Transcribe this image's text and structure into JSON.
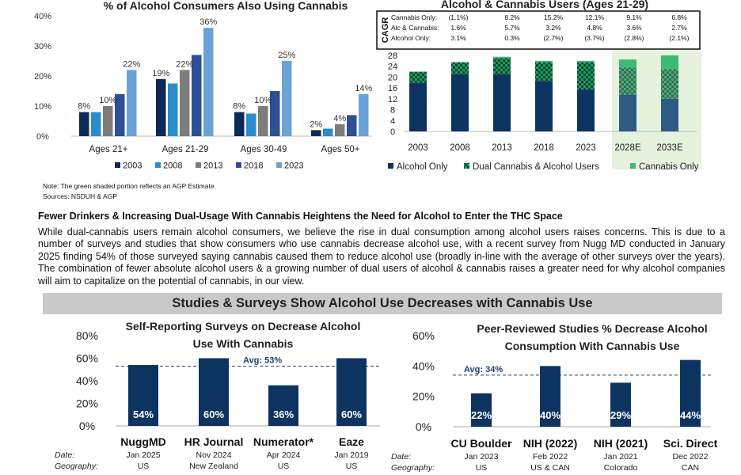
{
  "colors": {
    "c2003": "#0b2a55",
    "c2008": "#2b8ccb",
    "c2013": "#7d7d7d",
    "c2018": "#2e4f96",
    "c2023": "#6aa3d6",
    "navy": "#0d3461",
    "alcOnly": "#0d3461",
    "dual": "#1f9a5a",
    "cannOnly": "#3dbb74",
    "estShade": "#e5f2de"
  },
  "chart1": {
    "chart_data": {
      "type": "bar",
      "title": "% of Alcohol Consumers Also Using Cannabis",
      "categories": [
        "Ages 21+",
        "Ages 21-29",
        "Ages 30-49",
        "Ages 50+"
      ],
      "series": [
        {
          "name": "2003",
          "values": [
            8,
            19,
            8,
            2
          ]
        },
        {
          "name": "2008",
          "values": [
            8,
            17.5,
            7.5,
            2.5
          ]
        },
        {
          "name": "2013",
          "values": [
            10,
            22,
            10,
            4
          ]
        },
        {
          "name": "2018",
          "values": [
            14,
            27,
            15,
            7
          ]
        },
        {
          "name": "2023",
          "values": [
            22,
            36,
            25,
            14
          ]
        }
      ],
      "data_labels": [
        [
          "8%",
          "",
          "10%",
          "",
          "22%"
        ],
        [
          "19%",
          "",
          "22%",
          "",
          "36%"
        ],
        [
          "8%",
          "",
          "10%",
          "",
          "25%"
        ],
        [
          "2%",
          "",
          "4%",
          "",
          "14%"
        ]
      ],
      "yticks": [
        "0%",
        "10%",
        "20%",
        "30%",
        "40%"
      ],
      "ylim": [
        0,
        40
      ]
    }
  },
  "chart2": {
    "chart_data": {
      "type": "bar",
      "title": "Alcohol & Cannabis Users (Ages 21-29)",
      "categories": [
        "2003",
        "2008",
        "2013",
        "2018",
        "2023",
        "2028E",
        "2033E"
      ],
      "estimated_categories": [
        "2028E",
        "2033E"
      ],
      "series": [
        {
          "name": "Alcohol Only",
          "values": [
            18,
            21,
            21,
            18.5,
            15.5,
            13.5,
            12
          ]
        },
        {
          "name": "Dual Cannabis & Alcohol Users",
          "values": [
            4,
            4.5,
            6,
            7,
            10,
            10,
            11
          ]
        },
        {
          "name": "Cannabis Only",
          "values": [
            0,
            0,
            0.5,
            0.5,
            0.5,
            3,
            5
          ]
        }
      ],
      "yticks": [
        "0",
        "4",
        "8",
        "12",
        "16",
        "20",
        "24",
        "28"
      ],
      "ylim": [
        0,
        28
      ],
      "cagr": {
        "label": "CAGR",
        "rows": [
          {
            "name": "Cannabis Only:",
            "values": [
              "(1.1%)",
              "8.2%",
              "15.2%",
              "12.1%",
              "9.1%",
              "6.8%"
            ]
          },
          {
            "name": "Alc & Cannabis:",
            "values": [
              "1.6%",
              "5.7%",
              "3.2%",
              "4.8%",
              "3.6%",
              "2.7%"
            ]
          },
          {
            "name": "Alcohol Only:",
            "values": [
              "3.1%",
              "0.3%",
              "(2.7%)",
              "(3.7%)",
              "(2.8%)",
              "(2.1%)"
            ]
          }
        ]
      }
    }
  },
  "notes": {
    "note": "Note: The green shaded portion reflects an AGP Estimate.",
    "sources": "Sources: NSDUH & AGP"
  },
  "headline": "Fewer Drinkers & Increasing Dual-Usage With Cannabis Heightens the Need for Alcohol to Enter the THC Space",
  "paragraph": "While dual-cannabis users remain alcohol consumers, we believe the rise in dual consumption among alcohol users raises concerns. This is due to a number of surveys and studies that show consumers who use cannabis decrease alcohol use, with a recent survey from Nugg MD conducted in January 2025 finding 54% of those surveyed saying cannabis caused them to reduce alcohol use (broadly in-line with the average of other surveys over the years). The combination of fewer absolute alcohol users & a growing number of dual users of alcohol & cannabis raises a greater need for why alcohol companies will aim to capitalize on the potential of cannabis, in our view.",
  "banner": "Studies & Surveys Show Alcohol Use Decreases with Cannabis Use",
  "chart3": {
    "chart_data": {
      "type": "bar",
      "title_lines": [
        "Self-Reporting Surveys on Decrease Alcohol",
        "Use With Cannabis"
      ],
      "categories": [
        "NuggMD",
        "HR Journal",
        "Numerator*",
        "Eaze"
      ],
      "values": [
        54,
        60,
        36,
        60
      ],
      "value_labels": [
        "54%",
        "60%",
        "36%",
        "60%"
      ],
      "dates": [
        "Jan 2025",
        "Nov 2024",
        "Apr 2024",
        "Jan 2019"
      ],
      "geos": [
        "US",
        "New Zealand",
        "US",
        "US"
      ],
      "avg_label": "Avg: 53%",
      "avg": 53,
      "yticks": [
        "0%",
        "20%",
        "40%",
        "60%",
        "80%"
      ],
      "ylim": [
        0,
        80
      ],
      "row_labels": {
        "date": "Date:",
        "geo": "Geography:"
      }
    }
  },
  "chart4": {
    "chart_data": {
      "type": "bar",
      "title_lines": [
        "Peer-Reviewed Studies % Decrease Alcohol",
        "Consumption With Cannabis Use"
      ],
      "categories": [
        "CU Boulder",
        "NIH (2022)",
        "NIH (2021)",
        "Sci. Direct"
      ],
      "values": [
        22,
        40,
        29,
        44
      ],
      "value_labels": [
        "22%",
        "40%",
        "29%",
        "44%"
      ],
      "dates": [
        "Jan 2023",
        "Feb 2022",
        "Jan 2021",
        "Dec 2022"
      ],
      "geos": [
        "US",
        "US & CAN",
        "Colorado",
        "CAN"
      ],
      "avg_label": "Avg: 34%",
      "avg": 34,
      "yticks": [
        "0%",
        "20%",
        "40%",
        "60%"
      ],
      "ylim": [
        0,
        60
      ],
      "row_labels": {
        "date": "Date:",
        "geo": "Geography:"
      }
    }
  }
}
